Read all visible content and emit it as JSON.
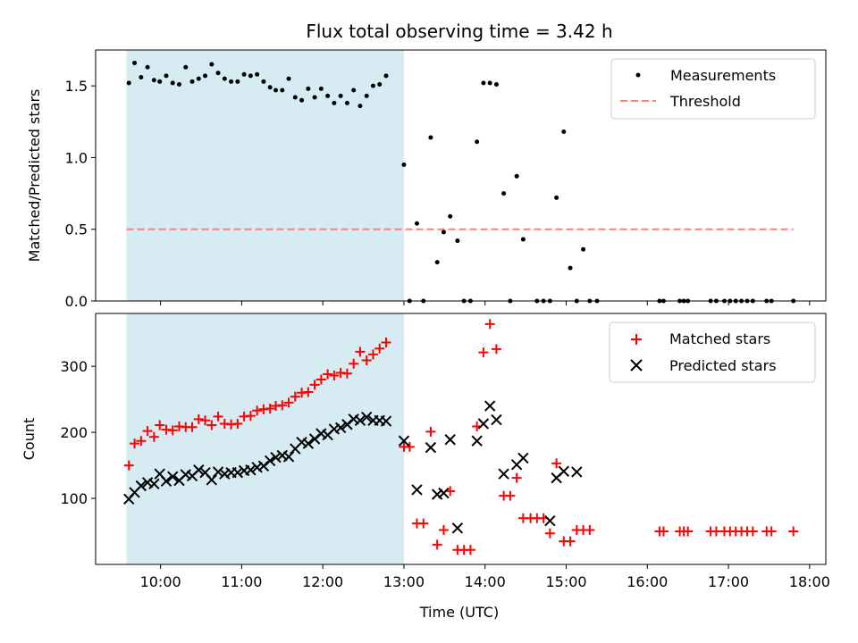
{
  "title": "Flux total observing time = 3.42 h",
  "xlabel": "Time (UTC)",
  "xticks": [
    "10:00",
    "11:00",
    "12:00",
    "13:00",
    "14:00",
    "15:00",
    "16:00",
    "17:00",
    "18:00"
  ],
  "colors": {
    "shade": "#add8e6",
    "measurements": "#000000",
    "threshold": "#ff7f7f",
    "matched": "#ff0000",
    "predicted": "#000000"
  },
  "chart_data": [
    {
      "type": "scatter",
      "ylabel": "Matched/Predicted stars",
      "xlim_hours": [
        9.2,
        18.2
      ],
      "ylim": [
        0,
        1.75
      ],
      "yticks": [
        "0.0",
        "0.5",
        "1.0",
        "1.5"
      ],
      "shaded_span_hours": [
        9.58,
        13.0
      ],
      "legend_position": "top-right",
      "threshold": {
        "name": "Threshold",
        "value": 0.5,
        "x_range_hours": [
          9.58,
          17.8
        ]
      },
      "series": [
        {
          "name": "Measurements",
          "points": [
            [
              9.61,
              1.52
            ],
            [
              9.68,
              1.66
            ],
            [
              9.76,
              1.56
            ],
            [
              9.84,
              1.63
            ],
            [
              9.92,
              1.54
            ],
            [
              9.99,
              1.53
            ],
            [
              10.07,
              1.57
            ],
            [
              10.15,
              1.52
            ],
            [
              10.23,
              1.51
            ],
            [
              10.31,
              1.63
            ],
            [
              10.39,
              1.53
            ],
            [
              10.47,
              1.55
            ],
            [
              10.55,
              1.57
            ],
            [
              10.63,
              1.65
            ],
            [
              10.71,
              1.59
            ],
            [
              10.79,
              1.55
            ],
            [
              10.87,
              1.53
            ],
            [
              10.95,
              1.53
            ],
            [
              11.03,
              1.58
            ],
            [
              11.11,
              1.57
            ],
            [
              11.19,
              1.58
            ],
            [
              11.27,
              1.53
            ],
            [
              11.35,
              1.49
            ],
            [
              11.42,
              1.47
            ],
            [
              11.5,
              1.47
            ],
            [
              11.58,
              1.55
            ],
            [
              11.66,
              1.42
            ],
            [
              11.74,
              1.4
            ],
            [
              11.82,
              1.48
            ],
            [
              11.9,
              1.42
            ],
            [
              11.98,
              1.48
            ],
            [
              12.06,
              1.43
            ],
            [
              12.14,
              1.38
            ],
            [
              12.22,
              1.43
            ],
            [
              12.3,
              1.38
            ],
            [
              12.38,
              1.47
            ],
            [
              12.46,
              1.36
            ],
            [
              12.54,
              1.43
            ],
            [
              12.62,
              1.5
            ],
            [
              12.7,
              1.51
            ],
            [
              12.78,
              1.57
            ],
            [
              13.0,
              0.95
            ],
            [
              13.07,
              0.0
            ],
            [
              13.16,
              0.54
            ],
            [
              13.24,
              0.0
            ],
            [
              13.33,
              1.14
            ],
            [
              13.41,
              0.27
            ],
            [
              13.49,
              0.48
            ],
            [
              13.57,
              0.59
            ],
            [
              13.66,
              0.42
            ],
            [
              13.74,
              0.0
            ],
            [
              13.82,
              0.0
            ],
            [
              13.9,
              1.11
            ],
            [
              13.98,
              1.52
            ],
            [
              14.06,
              1.52
            ],
            [
              14.14,
              1.51
            ],
            [
              14.23,
              0.75
            ],
            [
              14.31,
              0.0
            ],
            [
              14.39,
              0.87
            ],
            [
              14.47,
              0.43
            ],
            [
              14.64,
              0.0
            ],
            [
              14.72,
              0.0
            ],
            [
              14.8,
              0.0
            ],
            [
              14.88,
              0.72
            ],
            [
              14.97,
              1.18
            ],
            [
              15.05,
              0.23
            ],
            [
              15.13,
              0.0
            ],
            [
              15.21,
              0.36
            ],
            [
              15.29,
              0.0
            ],
            [
              15.38,
              0.0
            ],
            [
              16.15,
              0.0
            ],
            [
              16.2,
              0.0
            ],
            [
              16.4,
              0.0
            ],
            [
              16.45,
              0.0
            ],
            [
              16.5,
              0.0
            ],
            [
              16.78,
              0.0
            ],
            [
              16.85,
              0.0
            ],
            [
              16.95,
              0.0
            ],
            [
              17.02,
              0.0
            ],
            [
              17.09,
              0.0
            ],
            [
              17.16,
              0.0
            ],
            [
              17.23,
              0.0
            ],
            [
              17.3,
              0.0
            ],
            [
              17.47,
              0.0
            ],
            [
              17.53,
              0.0
            ],
            [
              17.8,
              0.0
            ]
          ]
        }
      ]
    },
    {
      "type": "scatter",
      "ylabel": "Count",
      "xlim_hours": [
        9.2,
        18.2
      ],
      "ylim": [
        0,
        380
      ],
      "yticks": [
        "100",
        "200",
        "300"
      ],
      "shaded_span_hours": [
        9.58,
        13.0
      ],
      "legend_position": "top-right",
      "series": [
        {
          "name": "Matched stars",
          "marker": "plus",
          "points": [
            [
              9.61,
              150
            ],
            [
              9.68,
              183
            ],
            [
              9.76,
              187
            ],
            [
              9.84,
              202
            ],
            [
              9.92,
              193
            ],
            [
              9.99,
              211
            ],
            [
              10.07,
              204
            ],
            [
              10.15,
              203
            ],
            [
              10.23,
              209
            ],
            [
              10.31,
              208
            ],
            [
              10.39,
              208
            ],
            [
              10.47,
              220
            ],
            [
              10.55,
              218
            ],
            [
              10.63,
              211
            ],
            [
              10.71,
              224
            ],
            [
              10.79,
              213
            ],
            [
              10.87,
              212
            ],
            [
              10.95,
              213
            ],
            [
              11.03,
              224
            ],
            [
              11.11,
              225
            ],
            [
              11.19,
              233
            ],
            [
              11.27,
              235
            ],
            [
              11.35,
              236
            ],
            [
              11.42,
              240
            ],
            [
              11.5,
              241
            ],
            [
              11.58,
              245
            ],
            [
              11.66,
              254
            ],
            [
              11.74,
              260
            ],
            [
              11.82,
              261
            ],
            [
              11.9,
              272
            ],
            [
              11.98,
              280
            ],
            [
              12.06,
              288
            ],
            [
              12.14,
              286
            ],
            [
              12.22,
              290
            ],
            [
              12.3,
              289
            ],
            [
              12.38,
              304
            ],
            [
              12.46,
              322
            ],
            [
              12.54,
              309
            ],
            [
              12.62,
              318
            ],
            [
              12.7,
              327
            ],
            [
              12.78,
              336
            ],
            [
              13.0,
              178
            ],
            [
              13.07,
              178
            ],
            [
              13.16,
              62
            ],
            [
              13.24,
              62
            ],
            [
              13.33,
              201
            ],
            [
              13.41,
              30
            ],
            [
              13.49,
              52
            ],
            [
              13.57,
              111
            ],
            [
              13.66,
              22
            ],
            [
              13.74,
              22
            ],
            [
              13.82,
              22
            ],
            [
              13.9,
              209
            ],
            [
              13.98,
              321
            ],
            [
              14.06,
              364
            ],
            [
              14.14,
              326
            ],
            [
              14.23,
              104
            ],
            [
              14.31,
              104
            ],
            [
              14.39,
              131
            ],
            [
              14.47,
              70
            ],
            [
              14.56,
              70
            ],
            [
              14.64,
              70
            ],
            [
              14.72,
              70
            ],
            [
              14.8,
              47
            ],
            [
              14.88,
              153
            ],
            [
              14.97,
              35
            ],
            [
              15.05,
              35
            ],
            [
              15.13,
              52
            ],
            [
              15.21,
              52
            ],
            [
              15.29,
              52
            ],
            [
              16.15,
              50
            ],
            [
              16.2,
              50
            ],
            [
              16.4,
              50
            ],
            [
              16.45,
              50
            ],
            [
              16.5,
              50
            ],
            [
              16.78,
              50
            ],
            [
              16.85,
              50
            ],
            [
              16.95,
              50
            ],
            [
              17.02,
              50
            ],
            [
              17.09,
              50
            ],
            [
              17.16,
              50
            ],
            [
              17.23,
              50
            ],
            [
              17.3,
              50
            ],
            [
              17.47,
              50
            ],
            [
              17.53,
              50
            ],
            [
              17.8,
              50
            ]
          ]
        },
        {
          "name": "Predicted stars",
          "marker": "x",
          "points": [
            [
              9.61,
              99
            ],
            [
              9.68,
              109
            ],
            [
              9.76,
              119
            ],
            [
              9.84,
              124
            ],
            [
              9.92,
              122
            ],
            [
              9.99,
              137
            ],
            [
              10.07,
              126
            ],
            [
              10.15,
              133
            ],
            [
              10.23,
              127
            ],
            [
              10.31,
              136
            ],
            [
              10.39,
              134
            ],
            [
              10.47,
              143
            ],
            [
              10.55,
              139
            ],
            [
              10.63,
              128
            ],
            [
              10.71,
              140
            ],
            [
              10.79,
              137
            ],
            [
              10.87,
              139
            ],
            [
              10.95,
              139
            ],
            [
              11.03,
              142
            ],
            [
              11.11,
              143
            ],
            [
              11.19,
              147
            ],
            [
              11.27,
              149
            ],
            [
              11.35,
              157
            ],
            [
              11.42,
              162
            ],
            [
              11.5,
              165
            ],
            [
              11.58,
              163
            ],
            [
              11.66,
              175
            ],
            [
              11.74,
              185
            ],
            [
              11.82,
              183
            ],
            [
              11.9,
              190
            ],
            [
              11.98,
              198
            ],
            [
              12.06,
              196
            ],
            [
              12.14,
              205
            ],
            [
              12.22,
              207
            ],
            [
              12.3,
              212
            ],
            [
              12.38,
              220
            ],
            [
              12.46,
              218
            ],
            [
              12.54,
              223
            ],
            [
              12.62,
              218
            ],
            [
              12.7,
              218
            ],
            [
              12.78,
              217
            ],
            [
              13.0,
              187
            ],
            [
              13.16,
              113
            ],
            [
              13.33,
              177
            ],
            [
              13.41,
              106
            ],
            [
              13.49,
              108
            ],
            [
              13.57,
              189
            ],
            [
              13.66,
              55
            ],
            [
              13.9,
              187
            ],
            [
              13.98,
              213
            ],
            [
              14.06,
              240
            ],
            [
              14.14,
              219
            ],
            [
              14.23,
              137
            ],
            [
              14.39,
              151
            ],
            [
              14.47,
              161
            ],
            [
              14.8,
              66
            ],
            [
              14.88,
              131
            ],
            [
              14.97,
              141
            ],
            [
              15.13,
              140
            ]
          ]
        }
      ]
    }
  ]
}
